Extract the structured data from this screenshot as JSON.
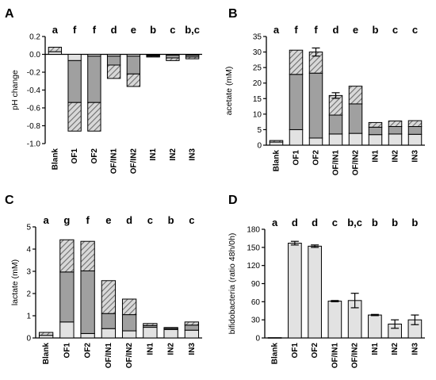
{
  "figure": {
    "patterns": {
      "hatch_fill": "#d8d8d8",
      "hatch_line": "#6e6e6e"
    },
    "colors": {
      "light": "#e2e2e2",
      "dark": "#a0a0a0",
      "outline": "#000000"
    }
  },
  "chart_data": [
    {
      "panel": "A",
      "type": "bar",
      "stacked": true,
      "categories": [
        "Blank",
        "OF1",
        "OF2",
        "OF/IN1",
        "OF/IN2",
        "IN1",
        "IN2",
        "IN3"
      ],
      "letters": [
        "a",
        "f",
        "f",
        "d",
        "e",
        "b",
        "c",
        "b,c"
      ],
      "ylabel": "pH change",
      "ylim": [
        -1.0,
        0.2
      ],
      "yticks": [
        -1.0,
        -0.8,
        -0.6,
        -0.4,
        -0.2,
        0.0,
        0.2
      ],
      "tick_decimals": 1,
      "stack_from_zero": true,
      "segments": [
        [
          {
            "from": 0,
            "to": 0.03,
            "fill": "light"
          },
          {
            "from": 0.03,
            "to": 0.08,
            "fill": "hatch"
          }
        ],
        [
          {
            "from": 0,
            "to": -0.07,
            "fill": "light"
          },
          {
            "from": -0.07,
            "to": -0.54,
            "fill": "dark"
          },
          {
            "from": -0.54,
            "to": -0.86,
            "fill": "hatch"
          }
        ],
        [
          {
            "from": 0,
            "to": -0.02,
            "fill": "light"
          },
          {
            "from": -0.02,
            "to": -0.54,
            "fill": "dark"
          },
          {
            "from": -0.54,
            "to": -0.86,
            "fill": "hatch"
          }
        ],
        [
          {
            "from": 0,
            "to": -0.02,
            "fill": "light"
          },
          {
            "from": -0.02,
            "to": -0.12,
            "fill": "dark"
          },
          {
            "from": -0.12,
            "to": -0.27,
            "fill": "hatch"
          }
        ],
        [
          {
            "from": 0,
            "to": -0.02,
            "fill": "light"
          },
          {
            "from": -0.02,
            "to": -0.22,
            "fill": "dark"
          },
          {
            "from": -0.22,
            "to": -0.36,
            "fill": "hatch"
          }
        ],
        [
          {
            "from": 0,
            "to": -0.01,
            "fill": "light"
          },
          {
            "from": -0.01,
            "to": -0.02,
            "fill": "dark"
          },
          {
            "from": -0.02,
            "to": -0.03,
            "fill": "hatch"
          }
        ],
        [
          {
            "from": 0,
            "to": -0.01,
            "fill": "light"
          },
          {
            "from": -0.01,
            "to": -0.04,
            "fill": "dark"
          },
          {
            "from": -0.04,
            "to": -0.07,
            "fill": "hatch"
          }
        ],
        [
          {
            "from": 0,
            "to": -0.01,
            "fill": "light"
          },
          {
            "from": -0.01,
            "to": -0.03,
            "fill": "dark"
          },
          {
            "from": -0.03,
            "to": -0.05,
            "fill": "hatch"
          }
        ]
      ],
      "errors": [
        null,
        null,
        null,
        null,
        null,
        null,
        null,
        null
      ]
    },
    {
      "panel": "B",
      "type": "bar",
      "stacked": true,
      "categories": [
        "Blank",
        "OF1",
        "OF2",
        "OF/IN1",
        "OF/IN2",
        "IN1",
        "IN2",
        "IN3"
      ],
      "letters": [
        "a",
        "f",
        "f",
        "d",
        "e",
        "b",
        "c",
        "c"
      ],
      "ylabel": "acetate (mM)",
      "ylim": [
        0,
        35
      ],
      "yticks": [
        0,
        5,
        10,
        15,
        20,
        25,
        30,
        35
      ],
      "tick_decimals": 0,
      "segments": [
        [
          {
            "from": 0,
            "to": 1.0,
            "fill": "light"
          },
          {
            "from": 1.0,
            "to": 1.5,
            "fill": "hatch"
          }
        ],
        [
          {
            "from": 0,
            "to": 5.0,
            "fill": "light"
          },
          {
            "from": 5.0,
            "to": 22.8,
            "fill": "dark"
          },
          {
            "from": 22.8,
            "to": 30.6,
            "fill": "hatch"
          }
        ],
        [
          {
            "from": 0,
            "to": 2.3,
            "fill": "light"
          },
          {
            "from": 2.3,
            "to": 23.2,
            "fill": "dark"
          },
          {
            "from": 23.2,
            "to": 30.0,
            "fill": "hatch"
          }
        ],
        [
          {
            "from": 0,
            "to": 3.6,
            "fill": "light"
          },
          {
            "from": 3.6,
            "to": 9.7,
            "fill": "dark"
          },
          {
            "from": 9.7,
            "to": 16.0,
            "fill": "hatch"
          }
        ],
        [
          {
            "from": 0,
            "to": 3.8,
            "fill": "light"
          },
          {
            "from": 3.8,
            "to": 13.3,
            "fill": "dark"
          },
          {
            "from": 13.3,
            "to": 19.0,
            "fill": "hatch"
          }
        ],
        [
          {
            "from": 0,
            "to": 3.4,
            "fill": "light"
          },
          {
            "from": 3.4,
            "to": 5.8,
            "fill": "dark"
          },
          {
            "from": 5.8,
            "to": 7.3,
            "fill": "hatch"
          }
        ],
        [
          {
            "from": 0,
            "to": 3.6,
            "fill": "light"
          },
          {
            "from": 3.6,
            "to": 6.0,
            "fill": "dark"
          },
          {
            "from": 6.0,
            "to": 7.8,
            "fill": "hatch"
          }
        ],
        [
          {
            "from": 0,
            "to": 3.5,
            "fill": "light"
          },
          {
            "from": 3.5,
            "to": 6.0,
            "fill": "dark"
          },
          {
            "from": 6.0,
            "to": 7.9,
            "fill": "hatch"
          }
        ]
      ],
      "errors": [
        null,
        null,
        1.3,
        0.9,
        null,
        null,
        null,
        null
      ]
    },
    {
      "panel": "C",
      "type": "bar",
      "stacked": true,
      "categories": [
        "Blank",
        "OF1",
        "OF2",
        "OF/IN1",
        "OF/IN2",
        "IN1",
        "IN2",
        "IN3"
      ],
      "letters": [
        "a",
        "g",
        "f",
        "e",
        "d",
        "c",
        "b",
        "c"
      ],
      "ylabel": "lactate (mM)",
      "ylim": [
        0,
        5
      ],
      "yticks": [
        0,
        1,
        2,
        3,
        4,
        5
      ],
      "tick_decimals": 0,
      "segments": [
        [
          {
            "from": 0,
            "to": 0.12,
            "fill": "light"
          },
          {
            "from": 0.12,
            "to": 0.25,
            "fill": "hatch"
          }
        ],
        [
          {
            "from": 0,
            "to": 0.72,
            "fill": "light"
          },
          {
            "from": 0.72,
            "to": 2.97,
            "fill": "dark"
          },
          {
            "from": 2.97,
            "to": 4.42,
            "fill": "hatch"
          }
        ],
        [
          {
            "from": 0,
            "to": 0.2,
            "fill": "light"
          },
          {
            "from": 0.2,
            "to": 3.02,
            "fill": "dark"
          },
          {
            "from": 3.02,
            "to": 4.35,
            "fill": "hatch"
          }
        ],
        [
          {
            "from": 0,
            "to": 0.42,
            "fill": "light"
          },
          {
            "from": 0.42,
            "to": 1.1,
            "fill": "dark"
          },
          {
            "from": 1.1,
            "to": 2.58,
            "fill": "hatch"
          }
        ],
        [
          {
            "from": 0,
            "to": 0.32,
            "fill": "light"
          },
          {
            "from": 0.32,
            "to": 1.05,
            "fill": "dark"
          },
          {
            "from": 1.05,
            "to": 1.75,
            "fill": "hatch"
          }
        ],
        [
          {
            "from": 0,
            "to": 0.48,
            "fill": "light"
          },
          {
            "from": 0.48,
            "to": 0.56,
            "fill": "dark"
          },
          {
            "from": 0.56,
            "to": 0.65,
            "fill": "hatch"
          }
        ],
        [
          {
            "from": 0,
            "to": 0.38,
            "fill": "light"
          },
          {
            "from": 0.38,
            "to": 0.43,
            "fill": "dark"
          },
          {
            "from": 0.43,
            "to": 0.47,
            "fill": "hatch"
          }
        ],
        [
          {
            "from": 0,
            "to": 0.35,
            "fill": "light"
          },
          {
            "from": 0.35,
            "to": 0.58,
            "fill": "dark"
          },
          {
            "from": 0.58,
            "to": 0.72,
            "fill": "hatch"
          }
        ]
      ],
      "errors": [
        null,
        null,
        null,
        null,
        null,
        null,
        null,
        null
      ]
    },
    {
      "panel": "D",
      "type": "bar",
      "stacked": false,
      "categories": [
        "Blank",
        "OF1",
        "OF2",
        "OF/IN1",
        "OF/IN2",
        "IN1",
        "IN2",
        "IN3"
      ],
      "letters": [
        "a",
        "d",
        "d",
        "c",
        "b,c",
        "b",
        "b",
        "b"
      ],
      "ylabel": "bifidobacteria (ratio 48h/0h)",
      "ylim": [
        0,
        180
      ],
      "yticks": [
        0,
        30,
        60,
        90,
        120,
        150,
        180
      ],
      "tick_decimals": 0,
      "values": [
        0.5,
        157,
        152,
        61,
        62,
        38,
        23,
        30
      ],
      "errors": [
        0,
        3,
        2,
        1,
        12,
        1,
        7,
        8
      ]
    }
  ]
}
